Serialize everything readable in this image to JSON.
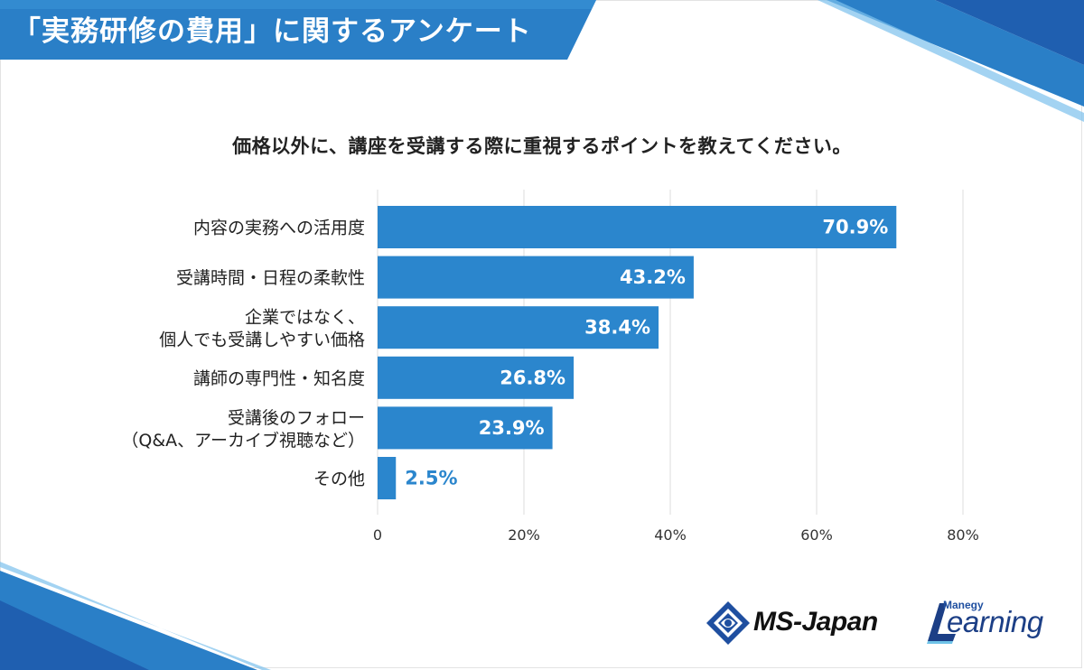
{
  "header": {
    "title": "「実務研修の費用」に関するアンケート"
  },
  "question": "価格以外に、講座を受講する際に重視するポイントを教えてください。",
  "colors": {
    "bar": "#2b86cd",
    "bar_label_inside": "#ffffff",
    "bar_label_outside": "#2b86cd",
    "header_band": "#2a7fc7",
    "header_band_light": "#6fb3e6",
    "grid": "#dddddd"
  },
  "chart_data": {
    "type": "bar",
    "orientation": "horizontal",
    "categories": [
      [
        "内容の実務への活用度"
      ],
      [
        "受講時間・日程の柔軟性"
      ],
      [
        "企業ではなく、",
        "個人でも受講しやすい価格"
      ],
      [
        "講師の専門性・知名度"
      ],
      [
        "受講後のフォロー",
        "（Q&A、アーカイブ視聴など）"
      ],
      [
        "その他"
      ]
    ],
    "values": [
      70.9,
      43.2,
      38.4,
      26.8,
      23.9,
      2.5
    ],
    "value_labels": [
      "70.9%",
      "43.2%",
      "38.4%",
      "26.8%",
      "23.9%",
      "2.5%"
    ],
    "xlim": [
      0,
      80
    ],
    "ticks": [
      0,
      20,
      40,
      60,
      80
    ],
    "tick_labels": [
      "0",
      "20%",
      "40%",
      "60%",
      "80%"
    ],
    "grid": true,
    "legend": "none"
  },
  "logos": {
    "ms_japan": "MS-Japan",
    "manegy": "Manegy",
    "learning": "earning"
  },
  "icons": [
    "ms-japan-diamond-logo-icon",
    "manegy-learning-L-logo-icon"
  ]
}
